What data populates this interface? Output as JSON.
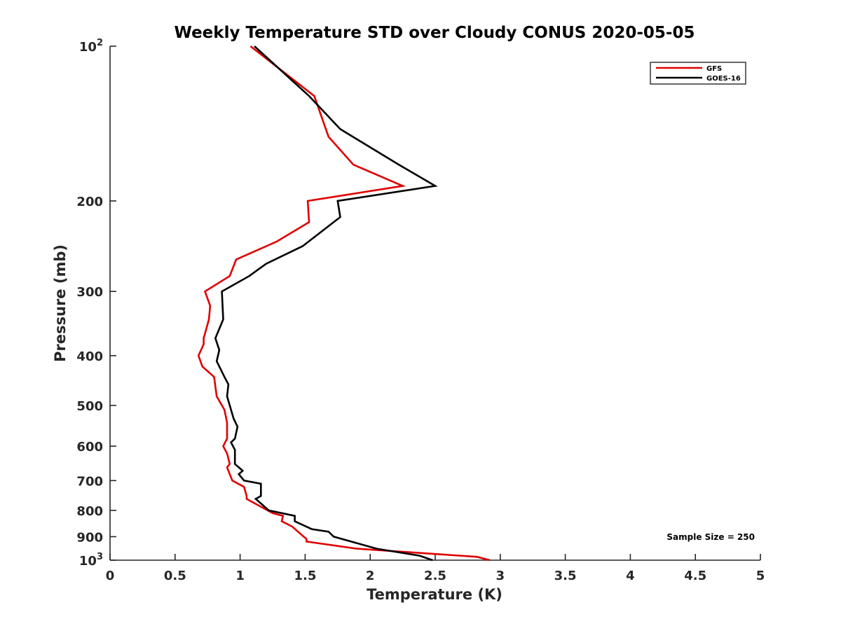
{
  "chart_data": {
    "type": "line",
    "title": "Weekly Temperature STD over Cloudy CONUS 2020-05-05",
    "xlabel": "Temperature (K)",
    "ylabel": "Pressure (mb)",
    "xlim": [
      0,
      5
    ],
    "ylim": [
      100,
      1000
    ],
    "y_scale": "log",
    "y_reversed": true,
    "grid": false,
    "legend_position": "top-right",
    "x_ticks": [
      0,
      0.5,
      1,
      1.5,
      2,
      2.5,
      3,
      3.5,
      4,
      4.5,
      5
    ],
    "x_tick_labels": [
      "0",
      "0.5",
      "1",
      "1.5",
      "2",
      "2.5",
      "3",
      "3.5",
      "4",
      "4.5",
      "5"
    ],
    "y_ticks": [
      100,
      200,
      300,
      400,
      500,
      600,
      700,
      800,
      900,
      1000
    ],
    "y_tick_labels": [
      {
        "base": "10",
        "exp": "2"
      },
      {
        "base": "200",
        "exp": ""
      },
      {
        "base": "300",
        "exp": ""
      },
      {
        "base": "400",
        "exp": ""
      },
      {
        "base": "500",
        "exp": ""
      },
      {
        "base": "600",
        "exp": ""
      },
      {
        "base": "700",
        "exp": ""
      },
      {
        "base": "800",
        "exp": ""
      },
      {
        "base": "900",
        "exp": ""
      },
      {
        "base": "10",
        "exp": "3"
      }
    ],
    "annotation": "Sample Size = 250",
    "series": [
      {
        "name": "GFS",
        "color": "#e00000",
        "points": [
          [
            1.08,
            100
          ],
          [
            1.57,
            125
          ],
          [
            1.68,
            150
          ],
          [
            1.87,
            170
          ],
          [
            2.25,
            187
          ],
          [
            1.52,
            200
          ],
          [
            1.53,
            220
          ],
          [
            1.28,
            240
          ],
          [
            0.97,
            260
          ],
          [
            0.92,
            280
          ],
          [
            0.73,
            300
          ],
          [
            0.77,
            320
          ],
          [
            0.76,
            340
          ],
          [
            0.72,
            370
          ],
          [
            0.72,
            380
          ],
          [
            0.68,
            400
          ],
          [
            0.71,
            420
          ],
          [
            0.8,
            440
          ],
          [
            0.82,
            480
          ],
          [
            0.88,
            510
          ],
          [
            0.9,
            540
          ],
          [
            0.9,
            580
          ],
          [
            0.87,
            600
          ],
          [
            0.9,
            620
          ],
          [
            0.92,
            650
          ],
          [
            0.9,
            660
          ],
          [
            0.93,
            690
          ],
          [
            0.94,
            700
          ],
          [
            1.03,
            720
          ],
          [
            1.05,
            750
          ],
          [
            1.05,
            760
          ],
          [
            1.25,
            810
          ],
          [
            1.33,
            820
          ],
          [
            1.32,
            840
          ],
          [
            1.4,
            860
          ],
          [
            1.51,
            910
          ],
          [
            1.51,
            920
          ],
          [
            1.9,
            950
          ],
          [
            2.82,
            985
          ],
          [
            2.92,
            1000
          ]
        ]
      },
      {
        "name": "GOES-16",
        "color": "#000000",
        "points": [
          [
            1.11,
            100
          ],
          [
            1.53,
            125
          ],
          [
            1.77,
            145
          ],
          [
            2.22,
            170
          ],
          [
            2.5,
            187
          ],
          [
            1.75,
            200
          ],
          [
            1.77,
            215
          ],
          [
            1.48,
            245
          ],
          [
            1.2,
            265
          ],
          [
            1.07,
            280
          ],
          [
            0.86,
            300
          ],
          [
            0.87,
            340
          ],
          [
            0.81,
            370
          ],
          [
            0.84,
            390
          ],
          [
            0.82,
            410
          ],
          [
            0.88,
            440
          ],
          [
            0.91,
            455
          ],
          [
            0.9,
            480
          ],
          [
            0.95,
            530
          ],
          [
            0.98,
            550
          ],
          [
            0.96,
            580
          ],
          [
            0.93,
            590
          ],
          [
            0.96,
            610
          ],
          [
            0.96,
            650
          ],
          [
            1.02,
            670
          ],
          [
            0.99,
            680
          ],
          [
            1.03,
            700
          ],
          [
            1.16,
            710
          ],
          [
            1.16,
            750
          ],
          [
            1.12,
            760
          ],
          [
            1.22,
            800
          ],
          [
            1.42,
            820
          ],
          [
            1.42,
            840
          ],
          [
            1.55,
            870
          ],
          [
            1.68,
            880
          ],
          [
            1.72,
            900
          ],
          [
            2.05,
            950
          ],
          [
            2.38,
            980
          ],
          [
            2.48,
            1000
          ]
        ]
      }
    ]
  }
}
